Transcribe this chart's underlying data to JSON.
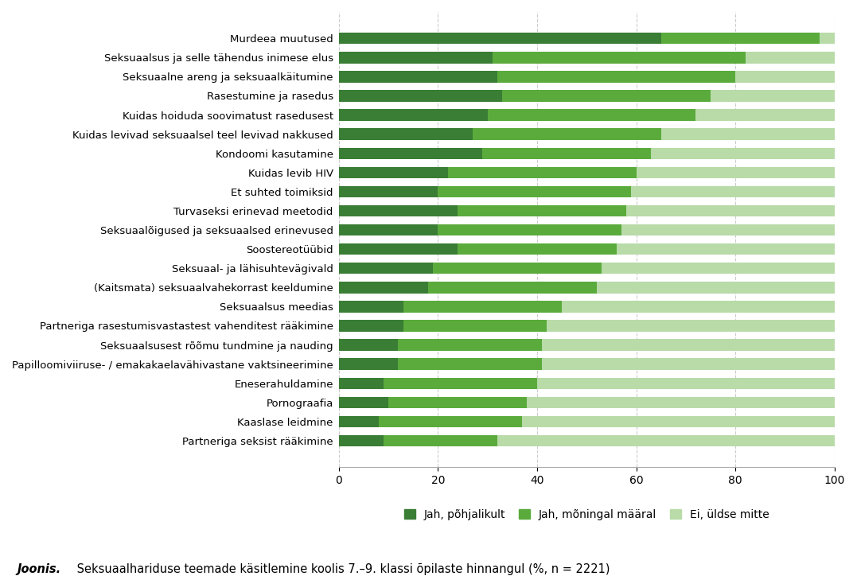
{
  "categories": [
    "Murdeea muutused",
    "Seksuaalsus ja selle tähendus inimese elus",
    "Seksuaalne areng ja seksuaalkäitumine",
    "Rasestumine ja rasedus",
    "Kuidas hoiduda soovimatust rasedusest",
    "Kuidas levivad seksuaalsel teel levivad nakkused",
    "Kondoomi kasutamine",
    "Kuidas levib HIV",
    "Et suhted toimiksid",
    "Turvaseksi erinevad meetodid",
    "Seksuaalõigused ja seksuaalsed erinevused",
    "Soostereotüübid",
    "Seksuaal- ja lähisuhtevägivald",
    "(Kaitsmata) seksuaalvahekorrast keeldumine",
    "Seksuaalsus meedias",
    "Partneriga rasestumisvastastest vahenditest rääkimine",
    "Seksuaalsusest rõõmu tundmine ja nauding",
    "Papilloomiviiruse- / emakakaelavähivastane vaktsineerimine",
    "Eneserahuldamine",
    "Pornograafia",
    "Kaaslase leidmine",
    "Partneriga seksist rääkimine"
  ],
  "jah_pohjalikult": [
    65,
    31,
    32,
    33,
    30,
    27,
    29,
    22,
    20,
    24,
    20,
    24,
    19,
    18,
    13,
    13,
    12,
    12,
    9,
    10,
    8,
    9
  ],
  "jah_moningal": [
    32,
    51,
    48,
    42,
    42,
    38,
    34,
    38,
    39,
    34,
    37,
    32,
    34,
    34,
    32,
    29,
    29,
    29,
    31,
    28,
    29,
    23
  ],
  "ei_uldse": [
    3,
    18,
    20,
    25,
    28,
    35,
    37,
    40,
    41,
    42,
    43,
    44,
    47,
    48,
    55,
    58,
    59,
    59,
    60,
    62,
    63,
    68
  ],
  "color_dark": "#3a7d35",
  "color_mid": "#5aab3c",
  "color_light": "#b8dba8",
  "legend_labels": [
    "Jah, põhjalikult",
    "Jah, mõningal määral",
    "Ei, üldse mitte"
  ],
  "xlim": [
    0,
    100
  ],
  "xticks": [
    0,
    20,
    40,
    60,
    80,
    100
  ],
  "title_bold": "Joonis.",
  "title_rest": " Seksuaalhariduse teemade käsitlemine koolis 7.–9. klassi õpilaste hinnangul (%, n = 2221)",
  "bar_height": 0.6,
  "figsize": [
    10.77,
    7.24
  ],
  "dpi": 100
}
